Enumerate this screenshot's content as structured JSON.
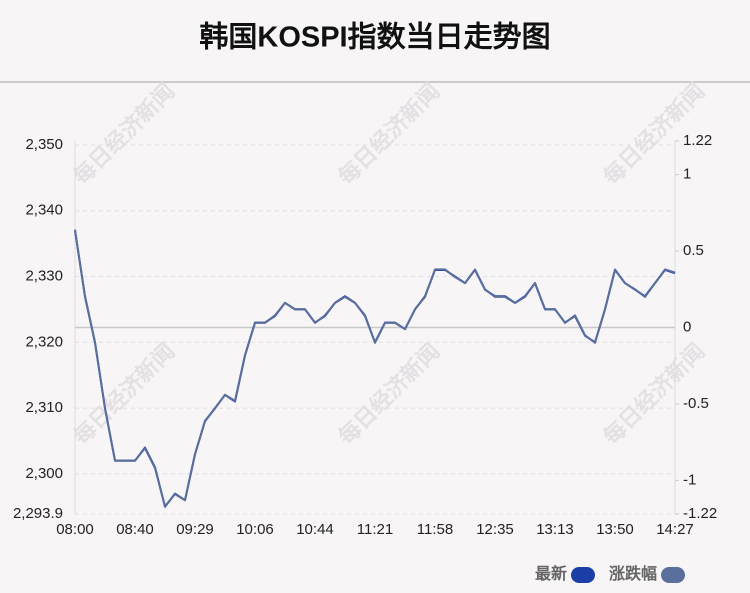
{
  "chart_data": {
    "type": "line",
    "title": "韩国KOSPI指数当日走势图",
    "watermark": "每日经济新闻",
    "categories": [
      "08:00",
      null,
      null,
      null,
      null,
      null,
      "08:40",
      null,
      null,
      null,
      null,
      null,
      "09:29",
      null,
      null,
      null,
      null,
      null,
      "10:06",
      null,
      null,
      null,
      null,
      null,
      "10:44",
      null,
      null,
      null,
      null,
      null,
      "11:21",
      null,
      null,
      null,
      null,
      null,
      "11:58",
      null,
      null,
      null,
      null,
      null,
      "12:35",
      null,
      null,
      null,
      null,
      null,
      "13:13",
      null,
      null,
      null,
      null,
      null,
      "13:50",
      null,
      null,
      null,
      null,
      null,
      "14:27"
    ],
    "series": [
      {
        "name": "最新",
        "color": "#1b3fa6",
        "axis": "y",
        "values": [
          2337,
          2327,
          2320,
          2310,
          2302,
          2302,
          2302,
          2304,
          2301,
          2295,
          2297,
          2296,
          2303,
          2308,
          2310,
          2312,
          2311,
          2318,
          2323,
          2323,
          2324,
          2326,
          2325,
          2325,
          2323,
          2324,
          2326,
          2327,
          2326,
          2324,
          2320,
          2323,
          2323,
          2322,
          2325,
          2327,
          2331,
          2331,
          2330,
          2329,
          2331,
          2328,
          2327,
          2327,
          2326,
          2327,
          2329,
          2325,
          2325,
          2323,
          2324,
          2321,
          2320,
          2325,
          2331,
          2329,
          2328,
          2327,
          2329,
          2331,
          2330.5
        ]
      },
      {
        "name": "涨跌幅",
        "color": "#5b6f9c",
        "axis": "y2",
        "values": [
          0.64,
          0.2,
          -0.1,
          -0.53,
          -0.87,
          -0.87,
          -0.87,
          -0.79,
          -0.92,
          -1.17,
          -1.09,
          -1.13,
          -0.83,
          -0.61,
          -0.53,
          -0.44,
          -0.48,
          -0.18,
          0.03,
          0.03,
          0.08,
          0.16,
          0.12,
          0.12,
          0.03,
          0.08,
          0.16,
          0.2,
          0.16,
          0.08,
          -0.1,
          0.03,
          0.03,
          -0.01,
          0.12,
          0.2,
          0.38,
          0.38,
          0.33,
          0.29,
          0.38,
          0.25,
          0.2,
          0.2,
          0.16,
          0.2,
          0.29,
          0.12,
          0.12,
          0.03,
          0.08,
          -0.05,
          -0.1,
          0.12,
          0.38,
          0.29,
          0.25,
          0.2,
          0.29,
          0.38,
          0.36
        ]
      }
    ],
    "ylim": [
      2293.9,
      2350.6
    ],
    "yticks": [
      {
        "value": 2293.9,
        "label": "2,293.9"
      },
      {
        "value": 2300,
        "label": "2,300"
      },
      {
        "value": 2310,
        "label": "2,310"
      },
      {
        "value": 2320,
        "label": "2,320"
      },
      {
        "value": 2330,
        "label": "2,330"
      },
      {
        "value": 2340,
        "label": "2,340"
      },
      {
        "value": 2350,
        "label": "2,350"
      }
    ],
    "y2lim": [
      -1.22,
      1.22
    ],
    "y2ticks": [
      -1.22,
      -1,
      -0.5,
      0,
      0.5,
      1,
      1.22
    ],
    "grid": true
  }
}
